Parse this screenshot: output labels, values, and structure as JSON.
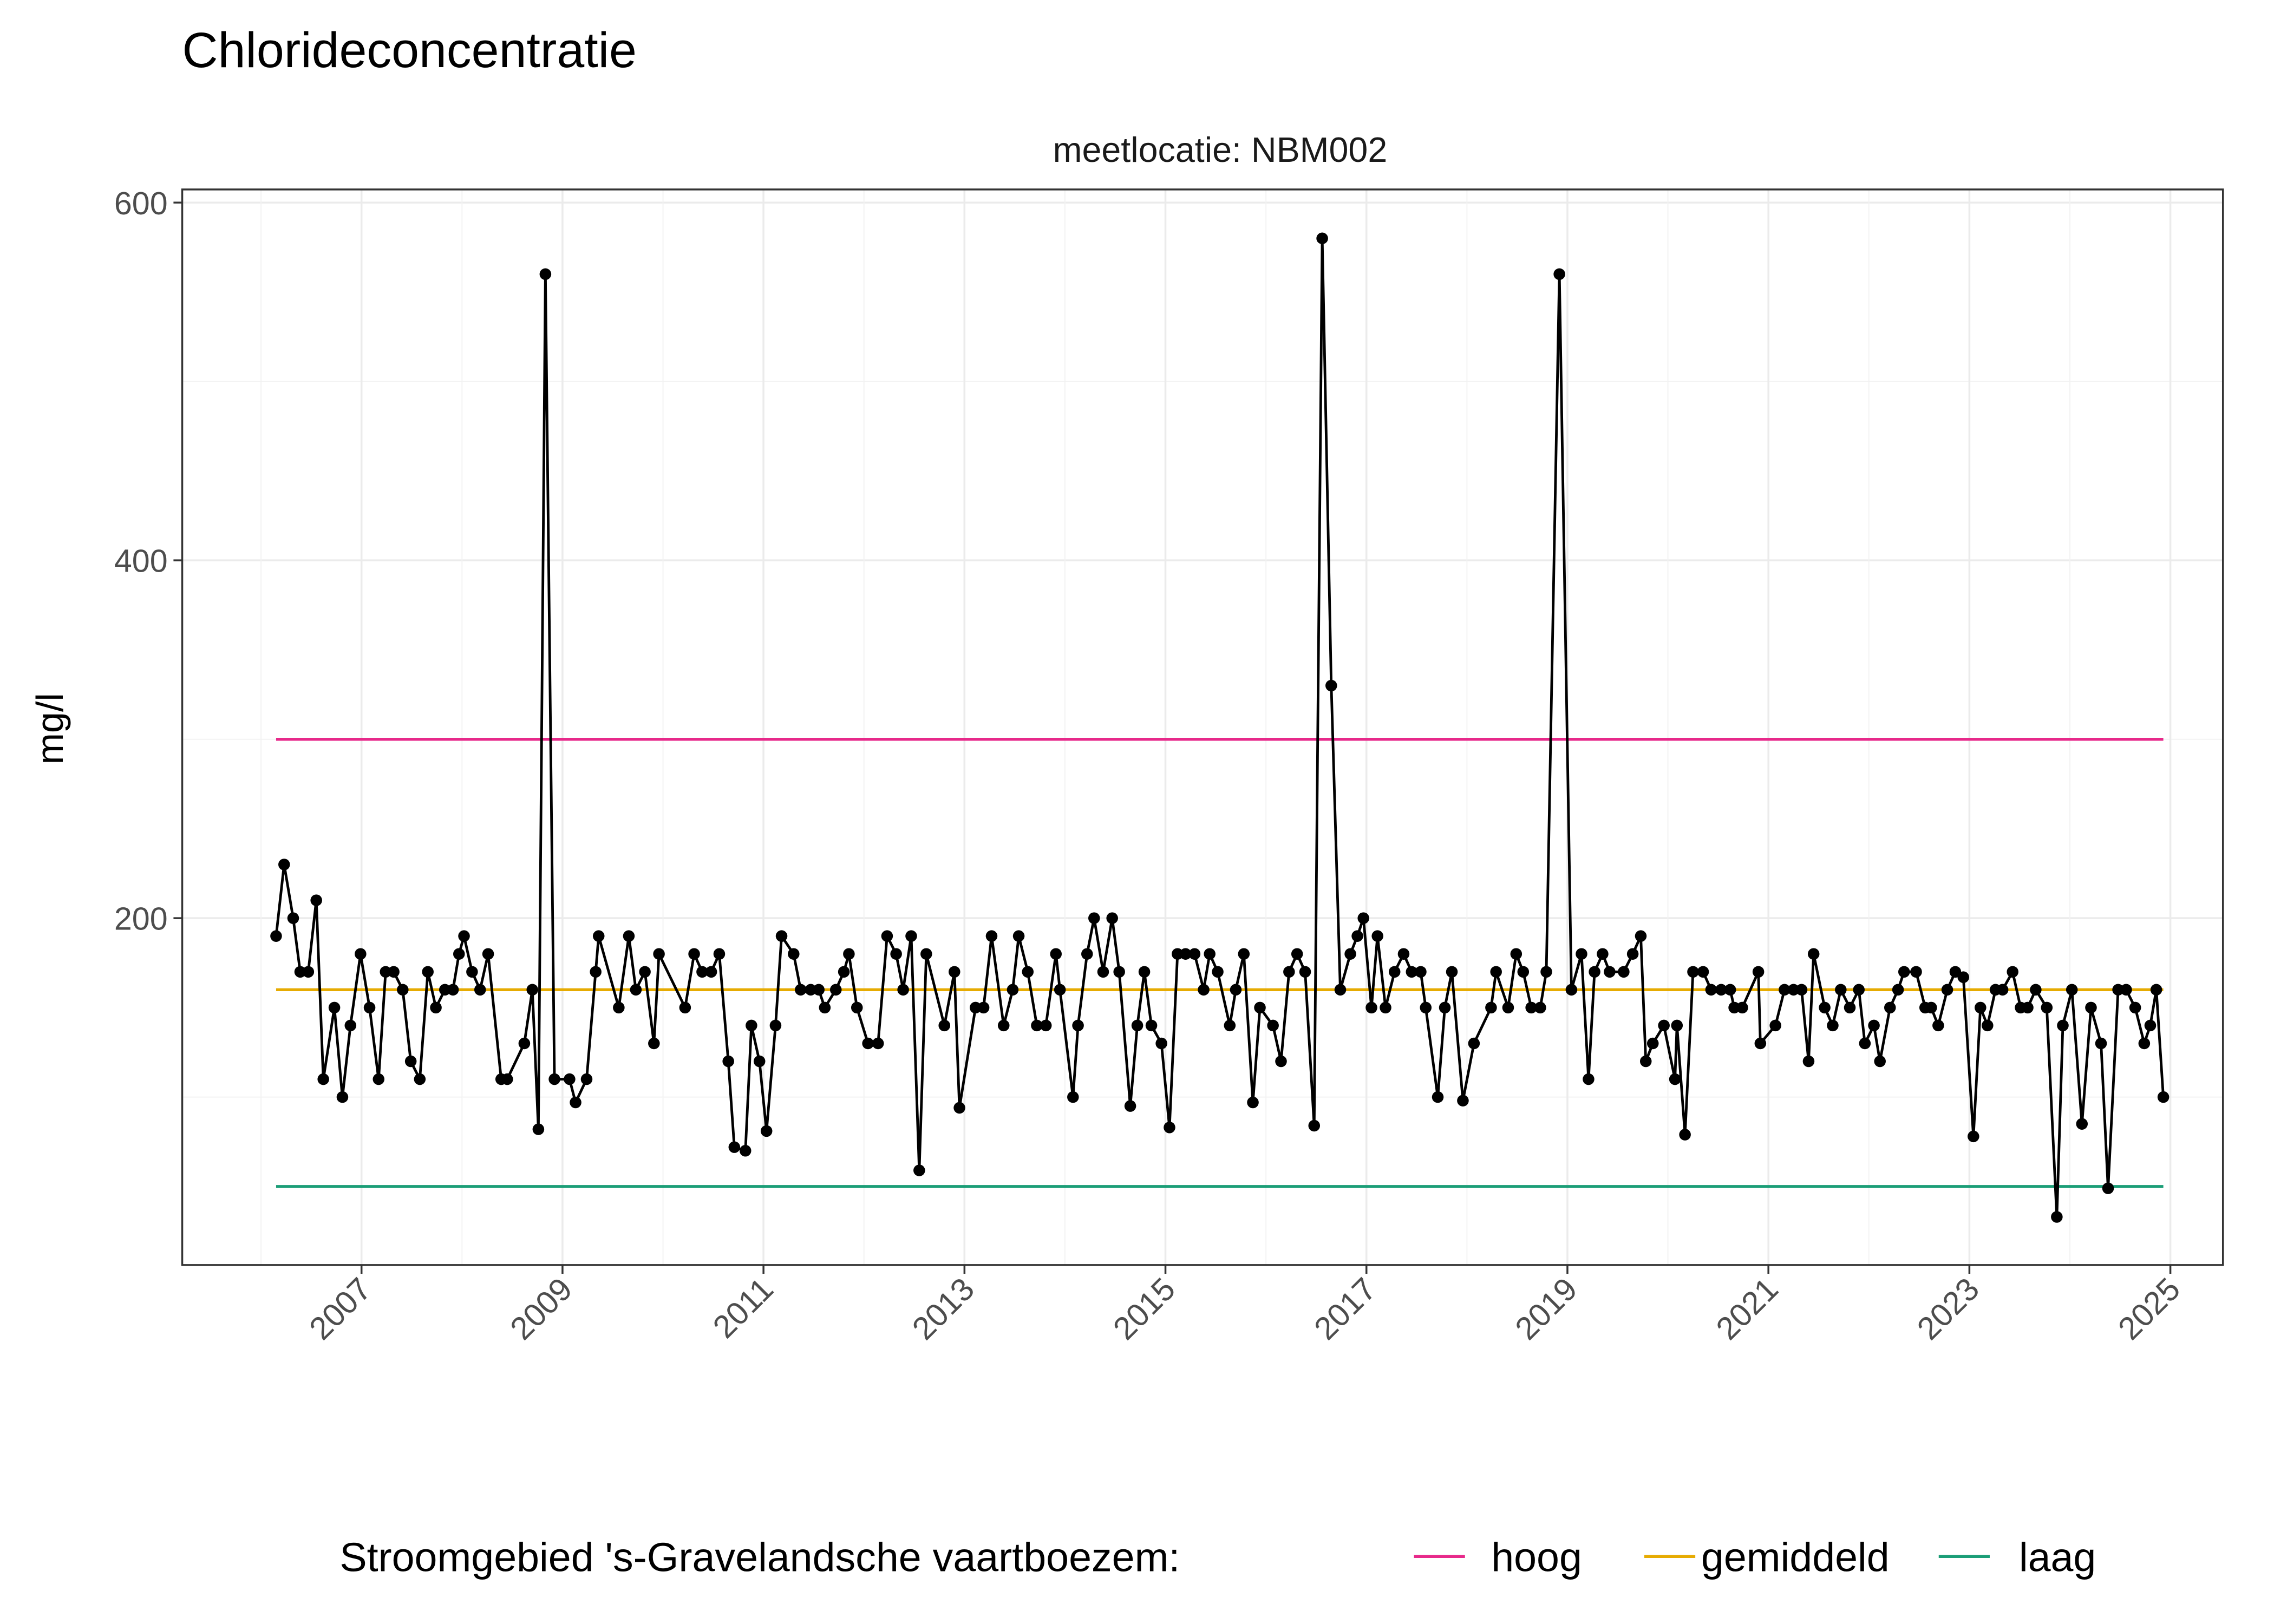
{
  "chart_data": {
    "type": "line",
    "title": "Chlorideconcentratie",
    "facet_label": "meetlocatie: NBM002",
    "xlabel": "",
    "ylabel": "mg/l",
    "x_ticks": [
      "2007",
      "2009",
      "2011",
      "2013",
      "2015",
      "2017",
      "2019",
      "2021",
      "2023",
      "2025"
    ],
    "y_ticks": [
      200,
      400,
      600
    ],
    "xlim": [
      2005.8,
      2025.3
    ],
    "ylim": [
      20,
      600
    ],
    "grid": true,
    "legend": {
      "title": "Stroomgebied 's-Gravelandsche vaartboezem:",
      "position": "bottom",
      "entries": [
        {
          "label": "hoog",
          "color": "#e7298a",
          "value": 300
        },
        {
          "label": "gemiddeld",
          "color": "#e6ab02",
          "value": 160
        },
        {
          "label": "laag",
          "color": "#1b9e77",
          "value": 50
        }
      ]
    },
    "series_color": "#000000",
    "points": [
      [
        2006.15,
        190
      ],
      [
        2006.23,
        230
      ],
      [
        2006.32,
        200
      ],
      [
        2006.39,
        170
      ],
      [
        2006.47,
        170
      ],
      [
        2006.55,
        210
      ],
      [
        2006.62,
        110
      ],
      [
        2006.73,
        150
      ],
      [
        2006.81,
        100
      ],
      [
        2006.89,
        140
      ],
      [
        2006.99,
        180
      ],
      [
        2007.08,
        150
      ],
      [
        2007.17,
        110
      ],
      [
        2007.24,
        170
      ],
      [
        2007.32,
        170
      ],
      [
        2007.41,
        160
      ],
      [
        2007.49,
        120
      ],
      [
        2007.58,
        110
      ],
      [
        2007.66,
        170
      ],
      [
        2007.74,
        150
      ],
      [
        2007.83,
        160
      ],
      [
        2007.91,
        160
      ],
      [
        2007.97,
        180
      ],
      [
        2008.02,
        190
      ],
      [
        2008.1,
        170
      ],
      [
        2008.18,
        160
      ],
      [
        2008.26,
        180
      ],
      [
        2008.39,
        110
      ],
      [
        2008.45,
        110
      ],
      [
        2008.62,
        130
      ],
      [
        2008.7,
        160
      ],
      [
        2008.76,
        82
      ],
      [
        2008.83,
        560
      ],
      [
        2008.92,
        110
      ],
      [
        2009.07,
        110
      ],
      [
        2009.13,
        97
      ],
      [
        2009.24,
        110
      ],
      [
        2009.33,
        170
      ],
      [
        2009.36,
        190
      ],
      [
        2009.56,
        150
      ],
      [
        2009.66,
        190
      ],
      [
        2009.73,
        160
      ],
      [
        2009.82,
        170
      ],
      [
        2009.91,
        130
      ],
      [
        2009.96,
        180
      ],
      [
        2010.22,
        150
      ],
      [
        2010.31,
        180
      ],
      [
        2010.39,
        170
      ],
      [
        2010.48,
        170
      ],
      [
        2010.56,
        180
      ],
      [
        2010.65,
        120
      ],
      [
        2010.71,
        72
      ],
      [
        2010.82,
        70
      ],
      [
        2010.88,
        140
      ],
      [
        2010.96,
        120
      ],
      [
        2011.03,
        81
      ],
      [
        2011.12,
        140
      ],
      [
        2011.18,
        190
      ],
      [
        2011.3,
        180
      ],
      [
        2011.37,
        160
      ],
      [
        2011.47,
        160
      ],
      [
        2011.55,
        160
      ],
      [
        2011.61,
        150
      ],
      [
        2011.72,
        160
      ],
      [
        2011.8,
        170
      ],
      [
        2011.85,
        180
      ],
      [
        2011.93,
        150
      ],
      [
        2012.04,
        130
      ],
      [
        2012.14,
        130
      ],
      [
        2012.23,
        190
      ],
      [
        2012.32,
        180
      ],
      [
        2012.39,
        160
      ],
      [
        2012.47,
        190
      ],
      [
        2012.55,
        59
      ],
      [
        2012.62,
        180
      ],
      [
        2012.8,
        140
      ],
      [
        2012.9,
        170
      ],
      [
        2012.95,
        94
      ],
      [
        2013.11,
        150
      ],
      [
        2013.19,
        150
      ],
      [
        2013.27,
        190
      ],
      [
        2013.39,
        140
      ],
      [
        2013.48,
        160
      ],
      [
        2013.54,
        190
      ],
      [
        2013.63,
        170
      ],
      [
        2013.72,
        140
      ],
      [
        2013.81,
        140
      ],
      [
        2013.91,
        180
      ],
      [
        2013.95,
        160
      ],
      [
        2014.08,
        100
      ],
      [
        2014.13,
        140
      ],
      [
        2014.22,
        180
      ],
      [
        2014.29,
        200
      ],
      [
        2014.38,
        170
      ],
      [
        2014.47,
        200
      ],
      [
        2014.54,
        170
      ],
      [
        2014.65,
        95
      ],
      [
        2014.72,
        140
      ],
      [
        2014.79,
        170
      ],
      [
        2014.86,
        140
      ],
      [
        2014.96,
        130
      ],
      [
        2015.04,
        83
      ],
      [
        2015.12,
        180
      ],
      [
        2015.2,
        180
      ],
      [
        2015.29,
        180
      ],
      [
        2015.38,
        160
      ],
      [
        2015.44,
        180
      ],
      [
        2015.52,
        170
      ],
      [
        2015.64,
        140
      ],
      [
        2015.7,
        160
      ],
      [
        2015.78,
        180
      ],
      [
        2015.87,
        97
      ],
      [
        2015.94,
        150
      ],
      [
        2016.07,
        140
      ],
      [
        2016.15,
        120
      ],
      [
        2016.23,
        170
      ],
      [
        2016.31,
        180
      ],
      [
        2016.39,
        170
      ],
      [
        2016.48,
        84
      ],
      [
        2016.56,
        580
      ],
      [
        2016.65,
        330
      ],
      [
        2016.74,
        160
      ],
      [
        2016.84,
        180
      ],
      [
        2016.91,
        190
      ],
      [
        2016.97,
        200
      ],
      [
        2017.05,
        150
      ],
      [
        2017.11,
        190
      ],
      [
        2017.19,
        150
      ],
      [
        2017.28,
        170
      ],
      [
        2017.37,
        180
      ],
      [
        2017.45,
        170
      ],
      [
        2017.54,
        170
      ],
      [
        2017.59,
        150
      ],
      [
        2017.71,
        100
      ],
      [
        2017.78,
        150
      ],
      [
        2017.85,
        170
      ],
      [
        2017.96,
        98
      ],
      [
        2018.07,
        130
      ],
      [
        2018.24,
        150
      ],
      [
        2018.29,
        170
      ],
      [
        2018.41,
        150
      ],
      [
        2018.49,
        180
      ],
      [
        2018.56,
        170
      ],
      [
        2018.64,
        150
      ],
      [
        2018.73,
        150
      ],
      [
        2018.79,
        170
      ],
      [
        2018.92,
        560
      ],
      [
        2019.04,
        160
      ],
      [
        2019.14,
        180
      ],
      [
        2019.21,
        110
      ],
      [
        2019.27,
        170
      ],
      [
        2019.35,
        180
      ],
      [
        2019.42,
        170
      ],
      [
        2019.56,
        170
      ],
      [
        2019.65,
        180
      ],
      [
        2019.73,
        190
      ],
      [
        2019.78,
        120
      ],
      [
        2019.85,
        130
      ],
      [
        2019.96,
        140
      ],
      [
        2020.07,
        110
      ],
      [
        2020.09,
        140
      ],
      [
        2020.17,
        79
      ],
      [
        2020.25,
        170
      ],
      [
        2020.35,
        170
      ],
      [
        2020.43,
        160
      ],
      [
        2020.53,
        160
      ],
      [
        2020.62,
        160
      ],
      [
        2020.66,
        150
      ],
      [
        2020.74,
        150
      ],
      [
        2020.9,
        170
      ],
      [
        2020.92,
        130
      ],
      [
        2021.07,
        140
      ],
      [
        2021.16,
        160
      ],
      [
        2021.25,
        160
      ],
      [
        2021.33,
        160
      ],
      [
        2021.4,
        120
      ],
      [
        2021.45,
        180
      ],
      [
        2021.56,
        150
      ],
      [
        2021.64,
        140
      ],
      [
        2021.72,
        160
      ],
      [
        2021.81,
        150
      ],
      [
        2021.9,
        160
      ],
      [
        2021.96,
        130
      ],
      [
        2022.05,
        140
      ],
      [
        2022.11,
        120
      ],
      [
        2022.21,
        150
      ],
      [
        2022.29,
        160
      ],
      [
        2022.35,
        170
      ],
      [
        2022.47,
        170
      ],
      [
        2022.56,
        150
      ],
      [
        2022.62,
        150
      ],
      [
        2022.69,
        140
      ],
      [
        2022.78,
        160
      ],
      [
        2022.86,
        170
      ],
      [
        2022.94,
        167
      ],
      [
        2023.04,
        78
      ],
      [
        2023.11,
        150
      ],
      [
        2023.18,
        140
      ],
      [
        2023.26,
        160
      ],
      [
        2023.33,
        160
      ],
      [
        2023.43,
        170
      ],
      [
        2023.51,
        150
      ],
      [
        2023.58,
        150
      ],
      [
        2023.66,
        160
      ],
      [
        2023.77,
        150
      ],
      [
        2023.87,
        33
      ],
      [
        2023.93,
        140
      ],
      [
        2024.02,
        160
      ],
      [
        2024.12,
        85
      ],
      [
        2024.21,
        150
      ],
      [
        2024.31,
        130
      ],
      [
        2024.38,
        49
      ],
      [
        2024.48,
        160
      ],
      [
        2024.56,
        160
      ],
      [
        2024.65,
        150
      ],
      [
        2024.74,
        130
      ],
      [
        2024.8,
        140
      ],
      [
        2024.86,
        160
      ],
      [
        2024.93,
        100
      ]
    ]
  }
}
